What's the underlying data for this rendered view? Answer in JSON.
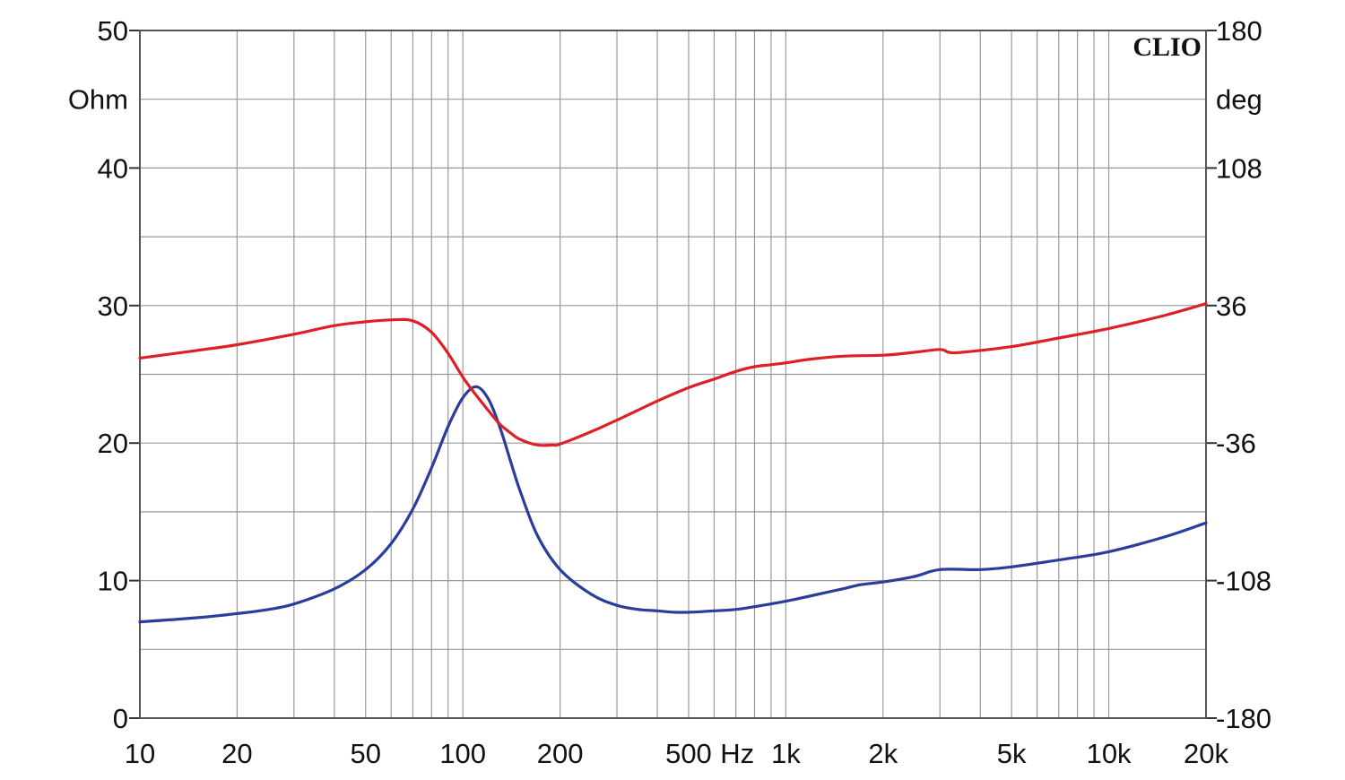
{
  "chart_data": {
    "type": "line",
    "watermark": "CLIO",
    "x_scale": "log",
    "xlim": [
      10,
      20000
    ],
    "x_ticks": [
      {
        "value": 10,
        "label": "10"
      },
      {
        "value": 20,
        "label": "20"
      },
      {
        "value": 50,
        "label": "50"
      },
      {
        "value": 100,
        "label": "100"
      },
      {
        "value": 200,
        "label": "200"
      },
      {
        "value": 500,
        "label": "500"
      },
      {
        "value": 1000,
        "label": "1k"
      },
      {
        "value": 2000,
        "label": "2k"
      },
      {
        "value": 5000,
        "label": "5k"
      },
      {
        "value": 10000,
        "label": "10k"
      },
      {
        "value": 20000,
        "label": "20k"
      }
    ],
    "x_unit": "Hz",
    "y_left": {
      "unit": "Ohm",
      "lim": [
        0,
        50
      ],
      "ticks": [
        {
          "value": 0,
          "label": "0"
        },
        {
          "value": 10,
          "label": "10"
        },
        {
          "value": 20,
          "label": "20"
        },
        {
          "value": 30,
          "label": "30"
        },
        {
          "value": 40,
          "label": "40"
        },
        {
          "value": 50,
          "label": "50"
        }
      ]
    },
    "y_right": {
      "unit": "deg",
      "lim": [
        -180,
        180
      ],
      "ticks": [
        {
          "value": -180,
          "label": "-180"
        },
        {
          "value": -108,
          "label": "-108"
        },
        {
          "value": -36,
          "label": "-36"
        },
        {
          "value": 36,
          "label": "36"
        },
        {
          "value": 108,
          "label": "108"
        },
        {
          "value": 180,
          "label": "180"
        }
      ]
    },
    "grid": true,
    "colors": {
      "impedance": "#2a3d9a",
      "phase": "#dd1f26",
      "grid": "#9a9a9a",
      "frame": "#555555"
    },
    "series": [
      {
        "axis": "left",
        "color": "#2a3d9a",
        "x": [
          10,
          15,
          20,
          25,
          30,
          40,
          50,
          60,
          70,
          80,
          90,
          100,
          110,
          120,
          130,
          140,
          150,
          170,
          200,
          250,
          300,
          350,
          400,
          450,
          500,
          600,
          700,
          800,
          1000,
          1200,
          1500,
          1700,
          2000,
          2500,
          3000,
          4000,
          5000,
          7000,
          10000,
          15000,
          20000
        ],
        "y": [
          7.0,
          7.3,
          7.6,
          7.9,
          8.3,
          9.4,
          10.8,
          12.7,
          15.2,
          18.2,
          21.2,
          23.3,
          24.1,
          23.2,
          21.2,
          18.8,
          16.6,
          13.3,
          10.8,
          9.0,
          8.2,
          7.9,
          7.8,
          7.7,
          7.7,
          7.8,
          7.9,
          8.1,
          8.5,
          8.9,
          9.4,
          9.7,
          9.9,
          10.3,
          10.8,
          10.8,
          11.0,
          11.5,
          12.1,
          13.2,
          14.2
        ]
      },
      {
        "axis": "right",
        "color": "#dd1f26",
        "x": [
          10,
          15,
          20,
          30,
          40,
          50,
          60,
          70,
          80,
          90,
          100,
          110,
          120,
          130,
          140,
          150,
          170,
          190,
          200,
          250,
          300,
          400,
          500,
          600,
          700,
          800,
          900,
          1000,
          1200,
          1500,
          2000,
          2500,
          3000,
          3200,
          3500,
          5000,
          7000,
          10000,
          15000,
          20000
        ],
        "y": [
          8.5,
          12.5,
          15.5,
          21,
          25.5,
          27.5,
          28.5,
          28,
          22,
          11,
          -1.5,
          -11,
          -19,
          -26,
          -30.5,
          -34,
          -37,
          -37,
          -36.5,
          -30,
          -24,
          -14,
          -7,
          -2.5,
          1.5,
          4,
          5,
          6,
          8,
          9.5,
          10,
          11.5,
          13,
          11.5,
          11.5,
          14.5,
          19,
          24,
          31,
          37
        ]
      }
    ]
  }
}
